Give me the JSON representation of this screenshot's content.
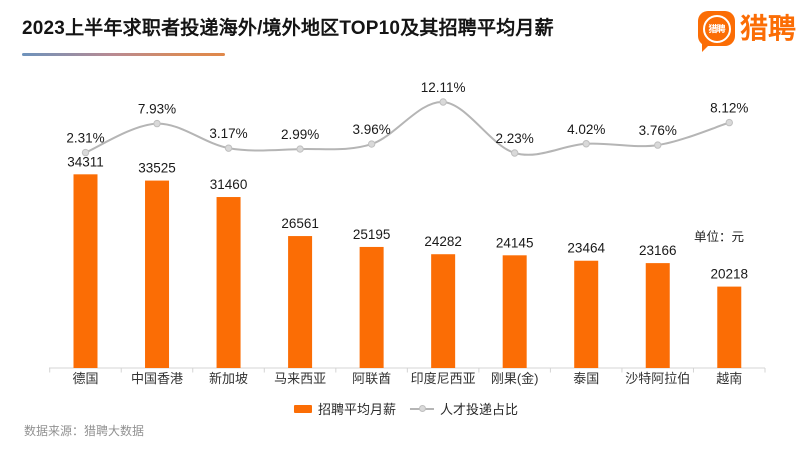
{
  "header": {
    "title": "2023上半年求职者投递海外/境外地区TOP10及其招聘平均月薪",
    "logo": {
      "icon_text": "猎聘",
      "wordmark": "猎聘"
    }
  },
  "chart": {
    "unit_label": "单位：元",
    "legend": [
      {
        "label": "招聘平均月薪",
        "swatch": "orange-bar"
      },
      {
        "label": "人才投递占比",
        "swatch": "gray-line-dot"
      }
    ],
    "source": "数据来源：猎聘大数据"
  },
  "chart_data": {
    "type": "bar+line",
    "title": "2023上半年求职者投递海外/境外地区TOP10及其招聘平均月薪",
    "categories": [
      "德国",
      "中国香港",
      "新加坡",
      "马来西亚",
      "阿联酋",
      "印度尼西亚",
      "刚果(金)",
      "泰国",
      "沙特阿拉伯",
      "越南"
    ],
    "series": [
      {
        "name": "招聘平均月薪",
        "type": "bar",
        "unit": "元",
        "color": "#fb6d05",
        "values": [
          34311,
          33525,
          31460,
          26561,
          25195,
          24282,
          24145,
          23464,
          23166,
          20218
        ]
      },
      {
        "name": "人才投递占比",
        "type": "line",
        "unit": "%",
        "color": "#b5b5b5",
        "values": [
          2.31,
          7.93,
          3.17,
          2.99,
          3.96,
          12.11,
          2.23,
          4.02,
          3.76,
          8.12
        ]
      }
    ],
    "y_axis": {
      "min": 10000,
      "max": 40000,
      "visible": false
    },
    "y2_axis": {
      "min": 0,
      "max": 14,
      "visible": false
    },
    "grid": false,
    "value_labels": true,
    "legend_position": "bottom"
  },
  "colors": {
    "accent_orange": "#fb6d05",
    "line_gray": "#b5b5b5",
    "marker_fill": "#d9d9d9",
    "marker_edge": "#bfbfbf",
    "axis_gray": "#d4d4d4",
    "text_dark": "#1a1a1a",
    "source_gray": "#919191",
    "underline_gradient_start": "#6d93bc",
    "underline_gradient_end": "#e0884a"
  }
}
